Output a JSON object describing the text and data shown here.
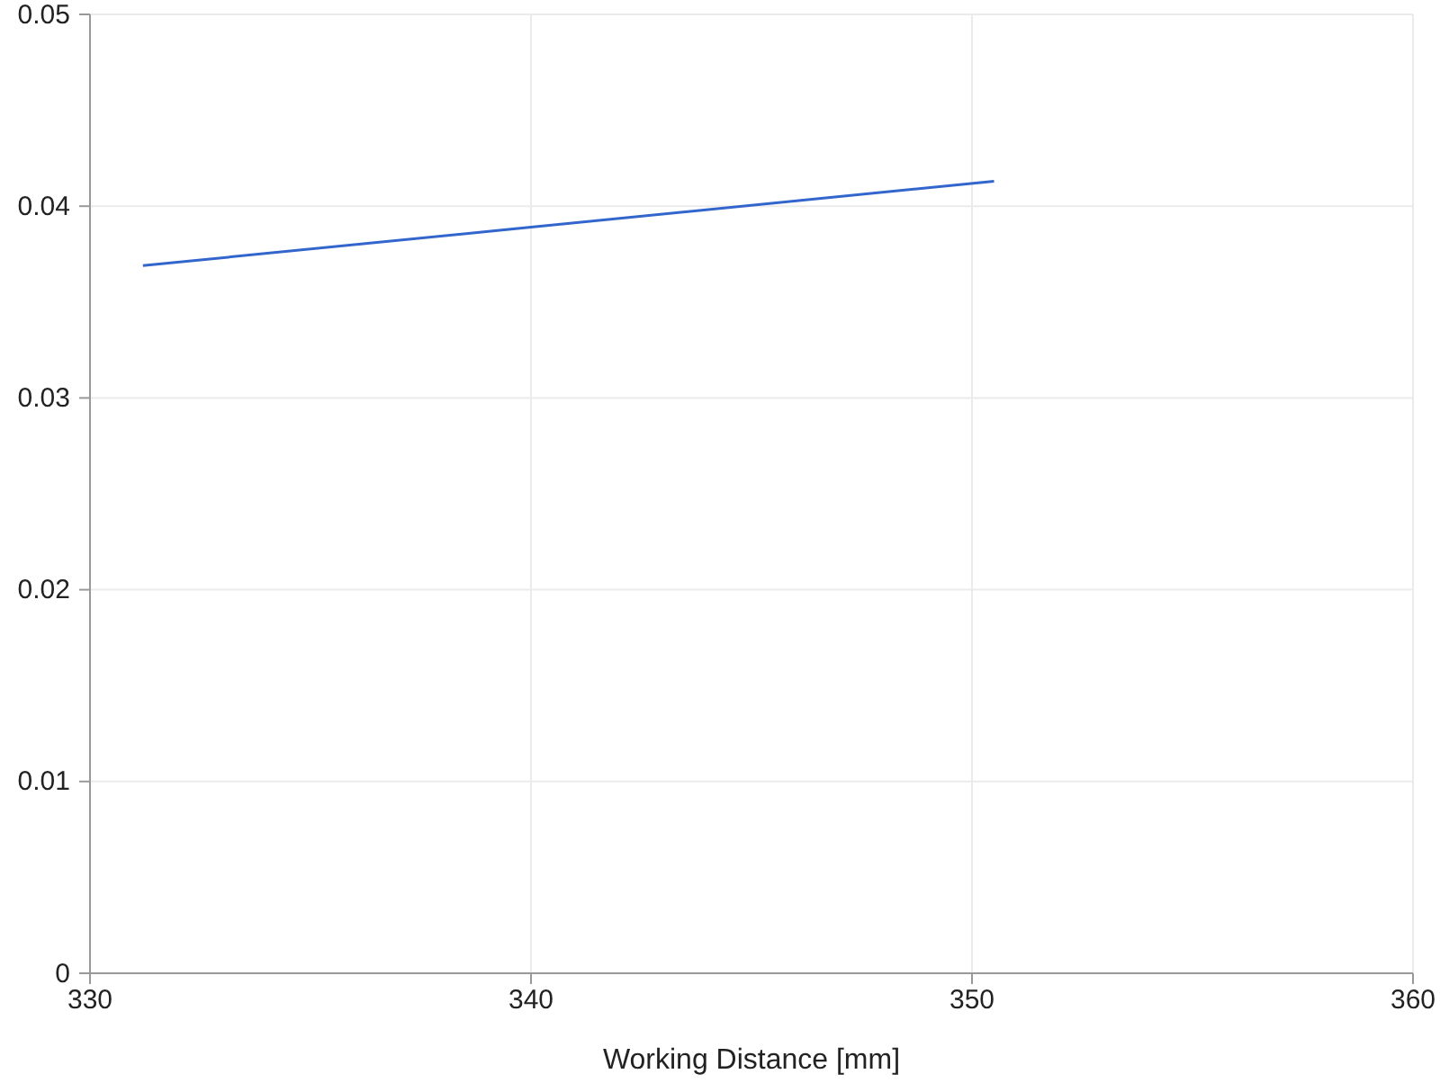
{
  "chart_data": {
    "type": "line",
    "xlabel": "Working Distance [mm]",
    "x": [
      331.2,
      350.5
    ],
    "series": [
      {
        "color": "#3366cc",
        "values": [
          0.0369,
          0.0413
        ]
      }
    ],
    "xlim": [
      330,
      360
    ],
    "xticks": [
      330,
      340,
      350,
      360
    ],
    "ylim": [
      0,
      0.05
    ],
    "yticks": [
      0,
      0.01,
      0.02,
      0.03,
      0.04,
      0.05
    ],
    "grid": true,
    "marker": "none",
    "line_style": "solid"
  }
}
